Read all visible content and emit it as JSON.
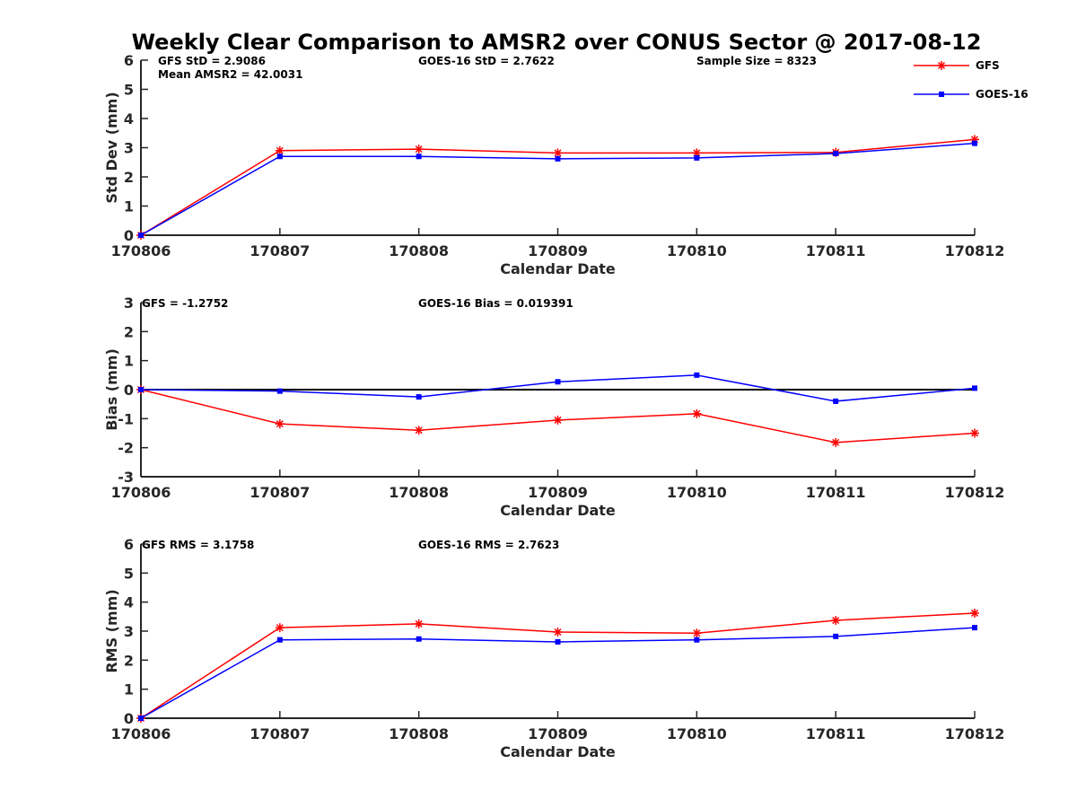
{
  "title": "Weekly Clear Comparison to AMSR2 over CONUS Sector @ 2017-08-12",
  "legend": {
    "placement": "top-right",
    "entries": [
      {
        "label": "GFS",
        "color": "#ff0000",
        "marker": "asterisk"
      },
      {
        "label": "GOES-16",
        "color": "#0000ff",
        "marker": "square"
      }
    ]
  },
  "stats": {
    "std": [
      "GFS StD = 2.9086",
      "Mean AMSR2 = 42.0031",
      "GOES-16 StD = 2.7622",
      "Sample Size = 8323"
    ],
    "bias": [
      "GFS = -1.2752",
      "GOES-16 Bias  = 0.019391"
    ],
    "rms": [
      "GFS RMS = 3.1758",
      "GOES-16 RMS = 2.7623"
    ]
  },
  "chart_data": [
    {
      "type": "line",
      "categories": [
        "170806",
        "170807",
        "170808",
        "170809",
        "170810",
        "170811",
        "170812"
      ],
      "xlabel": "Calendar Date",
      "ylabel": "Std Dev (mm)",
      "ylim": [
        0,
        6
      ],
      "yticks": [
        "0",
        "1",
        "2",
        "3",
        "4",
        "5",
        "6"
      ],
      "series": [
        {
          "name": "GFS",
          "color": "#ff0000",
          "marker": "asterisk",
          "values": [
            0.0,
            2.9,
            2.95,
            2.82,
            2.82,
            2.84,
            3.28
          ]
        },
        {
          "name": "GOES-16",
          "color": "#0000ff",
          "marker": "square",
          "values": [
            0.0,
            2.7,
            2.7,
            2.62,
            2.65,
            2.8,
            3.15
          ]
        }
      ]
    },
    {
      "type": "line",
      "categories": [
        "170806",
        "170807",
        "170808",
        "170809",
        "170810",
        "170811",
        "170812"
      ],
      "xlabel": "Calendar Date",
      "ylabel": "Bias (mm)",
      "ylim": [
        -3,
        3
      ],
      "yticks": [
        "-3",
        "-2",
        "-1",
        "0",
        "1",
        "2",
        "3"
      ],
      "reference_line": 0,
      "series": [
        {
          "name": "GFS",
          "color": "#ff0000",
          "marker": "asterisk",
          "values": [
            0.0,
            -1.18,
            -1.4,
            -1.05,
            -0.83,
            -1.82,
            -1.5
          ]
        },
        {
          "name": "GOES-16",
          "color": "#0000ff",
          "marker": "square",
          "values": [
            0.0,
            -0.05,
            -0.25,
            0.27,
            0.5,
            -0.4,
            0.05
          ]
        }
      ]
    },
    {
      "type": "line",
      "categories": [
        "170806",
        "170807",
        "170808",
        "170809",
        "170810",
        "170811",
        "170812"
      ],
      "xlabel": "Calendar Date",
      "ylabel": "RMS (mm)",
      "ylim": [
        0,
        6
      ],
      "yticks": [
        "0",
        "1",
        "2",
        "3",
        "4",
        "5",
        "6"
      ],
      "series": [
        {
          "name": "GFS",
          "color": "#ff0000",
          "marker": "asterisk",
          "values": [
            0.0,
            3.12,
            3.25,
            2.97,
            2.93,
            3.37,
            3.62
          ]
        },
        {
          "name": "GOES-16",
          "color": "#0000ff",
          "marker": "square",
          "values": [
            0.0,
            2.7,
            2.73,
            2.63,
            2.7,
            2.82,
            3.12
          ]
        }
      ]
    }
  ]
}
